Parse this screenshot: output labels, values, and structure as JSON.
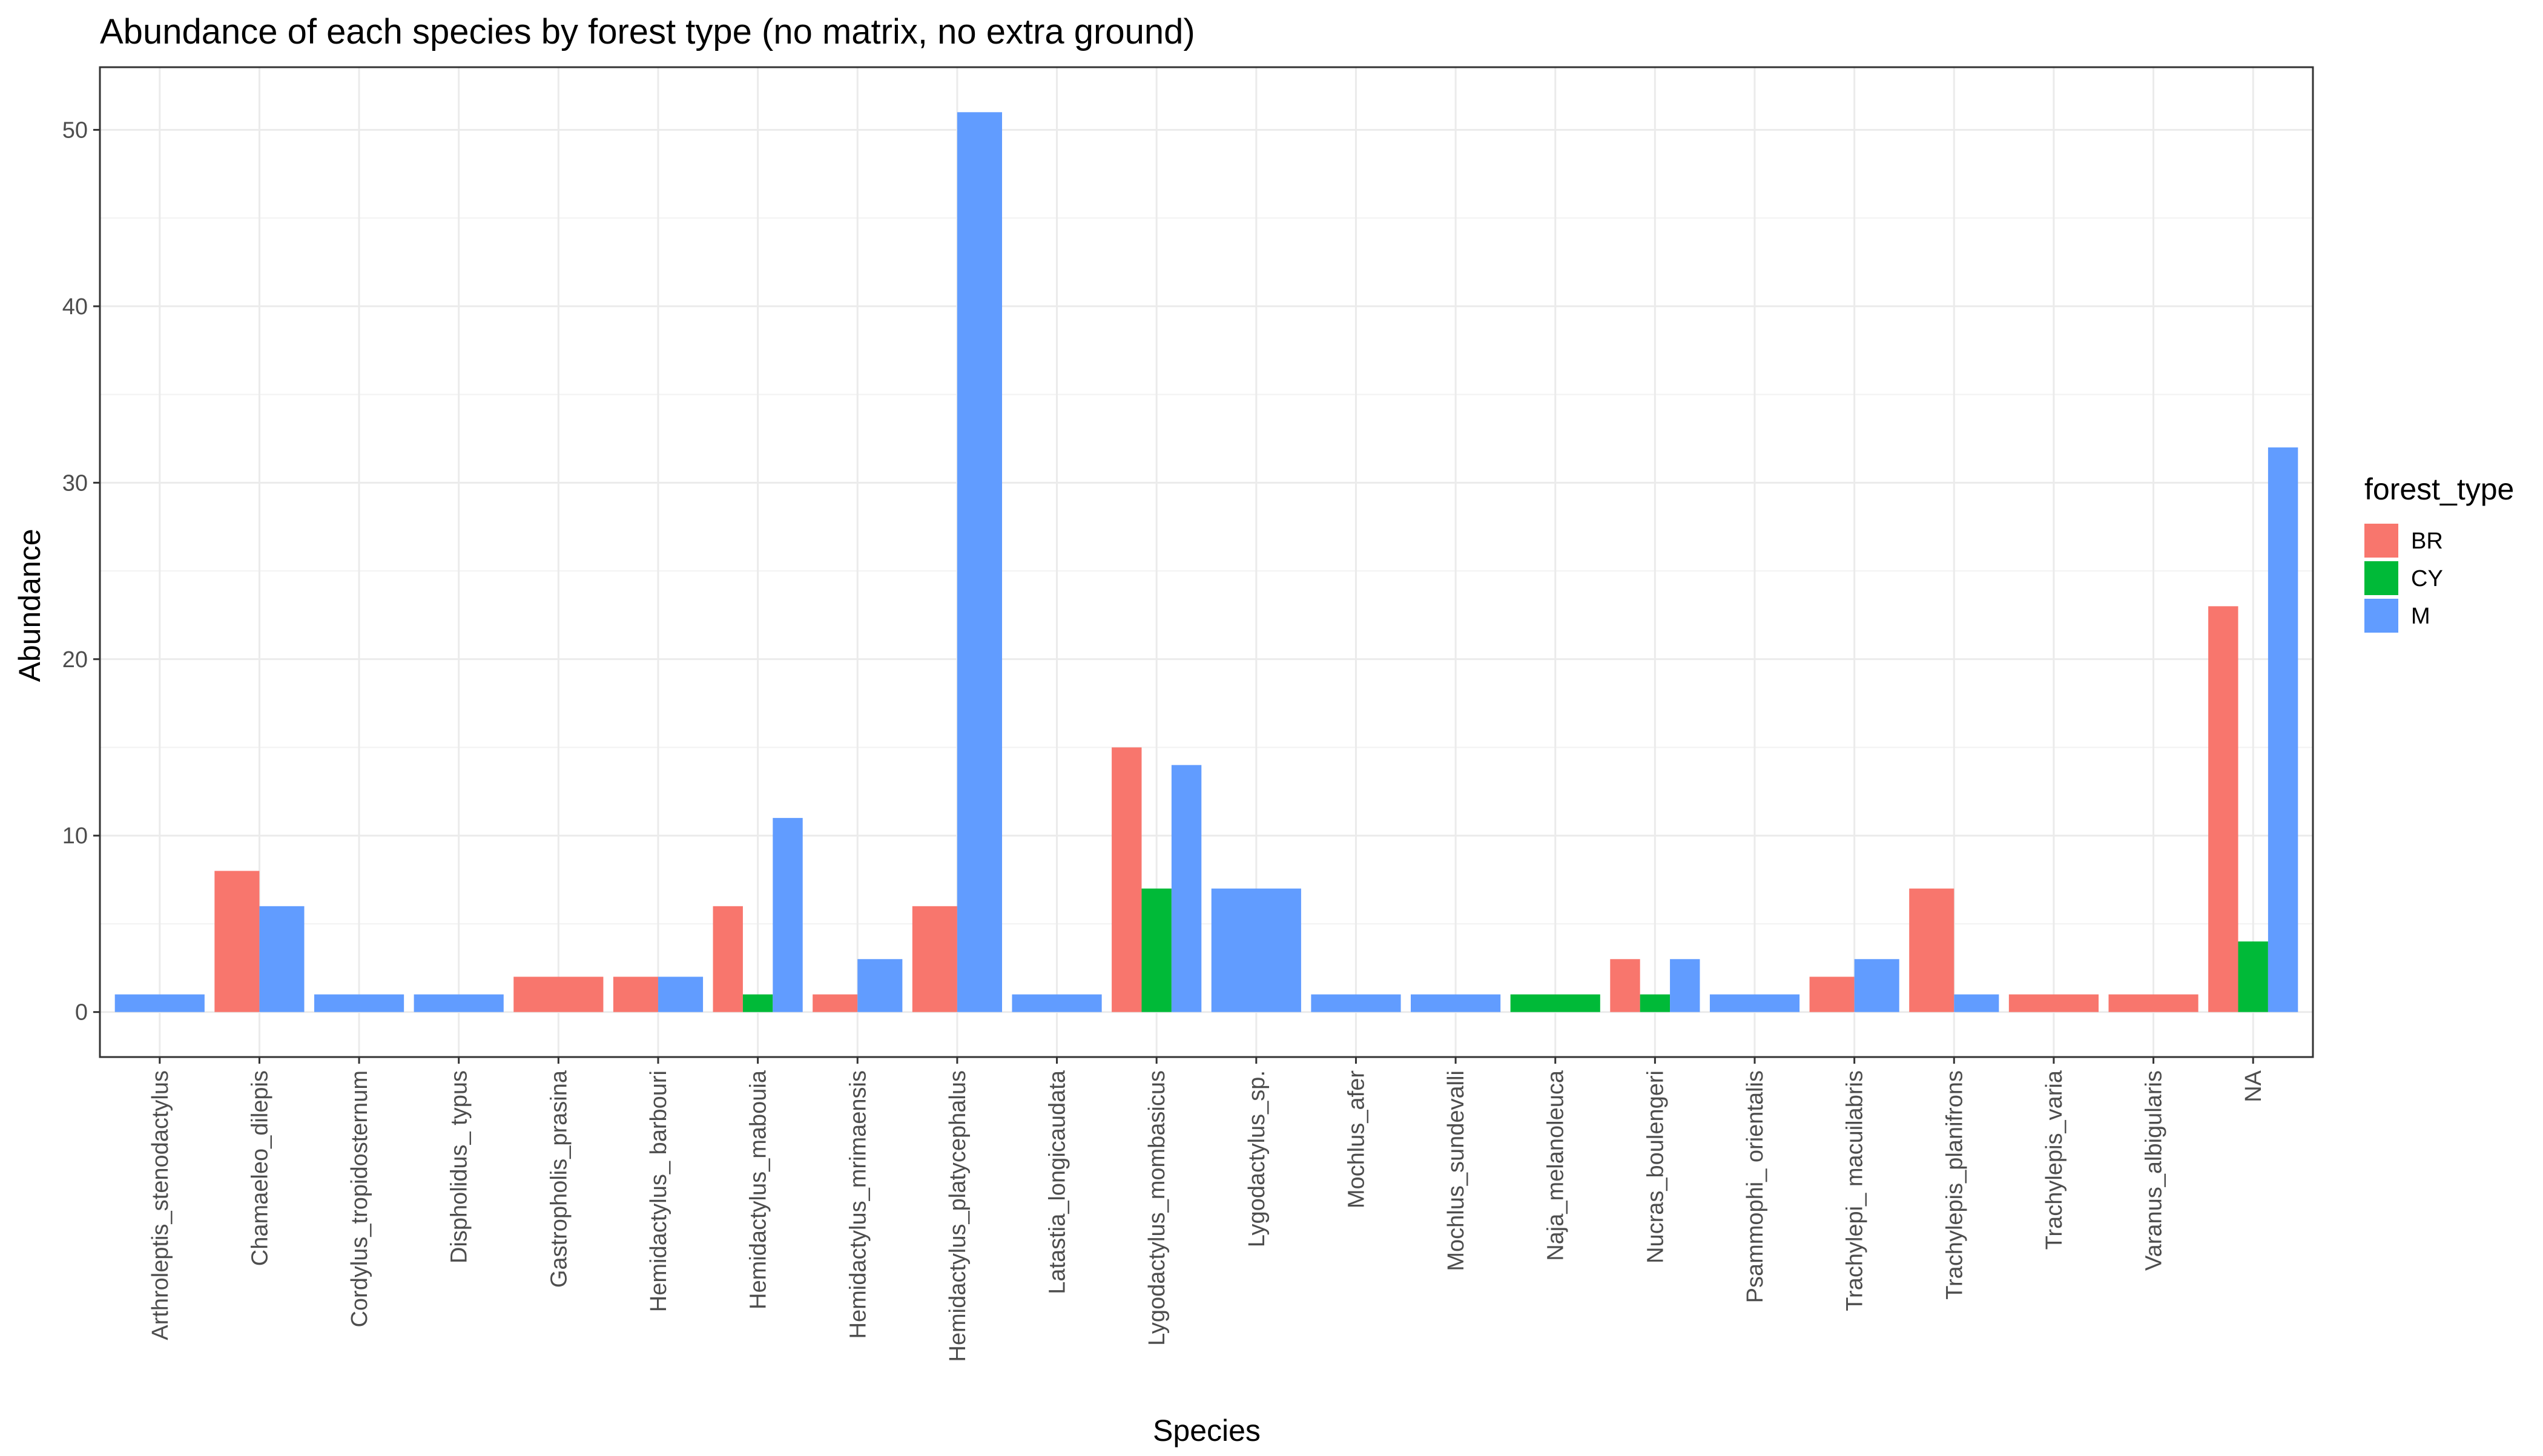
{
  "chart_data": {
    "type": "bar",
    "title": "Abundance of each species by forest type (no matrix, no extra ground)",
    "xlabel": "Species",
    "ylabel": "Abundance",
    "ylim": [
      -2.55,
      53.55
    ],
    "yticks": [
      0,
      10,
      20,
      30,
      40,
      50
    ],
    "grid": true,
    "legend": {
      "title": "forest_type",
      "position": "right"
    },
    "colors": {
      "BR": "#F8766D",
      "CY": "#00BA38",
      "M": "#619CFF"
    },
    "categories": [
      "Arthroleptis_stenodactylus",
      "Chamaeleo_dilepis",
      "Cordylus_tropidosternum",
      "Dispholidus_ typus",
      "Gastropholis_prasina",
      "Hemidactylus_ barbouri",
      "Hemidactylus_mabouia",
      "Hemidactylus_mrimaensis",
      "Hemidactylus_platycephalus",
      "Latastia_longicaudata",
      "Lygodactylus_mombasicus",
      "Lygodactylus_sp.",
      "Mochlus_afer",
      "Mochlus_sundevalli",
      "Naja_melanoleuca",
      "Nucras_boulengeri",
      "Psammophi_ orientalis",
      "Trachylepi_ macuilabris",
      "Trachylepis_planifrons",
      "Trachylepis_varia",
      "Varanus_albigularis",
      "NA"
    ],
    "series": [
      {
        "name": "BR",
        "values": [
          0,
          8,
          0,
          0,
          2,
          2,
          6,
          1,
          6,
          0,
          15,
          0,
          0,
          0,
          0,
          3,
          0,
          2,
          7,
          1,
          1,
          23
        ]
      },
      {
        "name": "CY",
        "values": [
          0,
          0,
          0,
          0,
          0,
          0,
          1,
          0,
          0,
          0,
          7,
          0,
          0,
          0,
          1,
          1,
          0,
          0,
          0,
          0,
          0,
          4
        ]
      },
      {
        "name": "M",
        "values": [
          1,
          6,
          1,
          1,
          0,
          2,
          11,
          3,
          51,
          1,
          14,
          7,
          1,
          1,
          0,
          3,
          1,
          3,
          1,
          0,
          0,
          32
        ]
      }
    ]
  }
}
